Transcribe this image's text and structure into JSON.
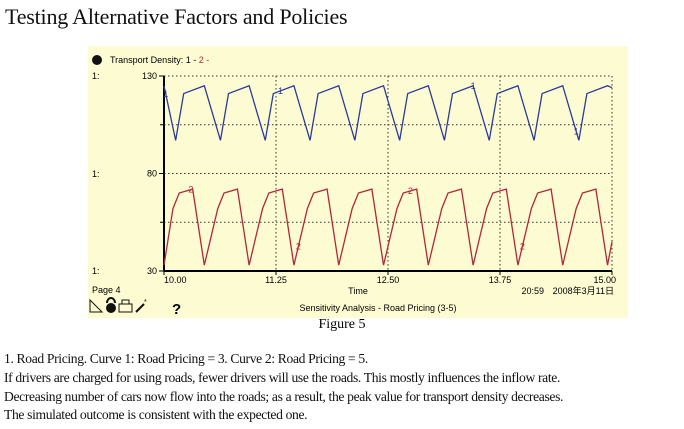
{
  "title": "Testing Alternative Factors and Policies",
  "panel": {
    "legend_prefix": "Transport Density: 1 - ",
    "legend_2": "2 -",
    "axis_marker": "1:",
    "page": "Page 4",
    "xlabel": "Time",
    "clock": "20:59",
    "date": "2008年3月11日",
    "run_label": "Sensitivity Analysis - Road Pricing (3-5)",
    "help": "?",
    "icons": [
      "pie-icon",
      "lock-icon",
      "printer-icon",
      "magic-wand-icon",
      "help-icon"
    ]
  },
  "chart_data": {
    "type": "line",
    "title": "Transport Density",
    "xlabel": "Time",
    "ylabel": "",
    "xlim": [
      10,
      15
    ],
    "ylim": [
      30,
      130
    ],
    "xticks": [
      "10.00",
      "11.25",
      "12.50",
      "13.75",
      "15.00"
    ],
    "yticks": [
      "30",
      "80",
      "130"
    ],
    "grid": true,
    "series": [
      {
        "name": "1",
        "color": "#2a3a9c",
        "t": [
          10,
          10.13,
          10.22,
          10.45,
          10.63,
          10.72,
          10.95,
          11.13,
          11.22,
          11.45,
          11.63,
          11.72,
          11.95,
          12.13,
          12.22,
          12.45,
          12.63,
          12.72,
          12.95,
          13.13,
          13.22,
          13.45,
          13.63,
          13.72,
          13.95,
          14.13,
          14.22,
          14.45,
          14.63,
          14.72,
          14.95,
          15
        ],
        "v": [
          125,
          97,
          121,
          125,
          97,
          121,
          125,
          97,
          121,
          125,
          97,
          121,
          125,
          97,
          121,
          125,
          97,
          121,
          125,
          97,
          121,
          125,
          97,
          121,
          125,
          97,
          121,
          125,
          97,
          121,
          125,
          124
        ],
        "labels_at": [
          10.02,
          11.3,
          13.45,
          14.6
        ]
      },
      {
        "name": "2",
        "color": "#b0283a",
        "t": [
          10,
          10.1,
          10.17,
          10.32,
          10.45,
          10.6,
          10.67,
          10.82,
          10.95,
          11.1,
          11.17,
          11.32,
          11.45,
          11.6,
          11.67,
          11.82,
          11.95,
          12.1,
          12.17,
          12.32,
          12.45,
          12.6,
          12.67,
          12.82,
          12.95,
          13.1,
          13.17,
          13.32,
          13.45,
          13.6,
          13.67,
          13.82,
          13.95,
          14.1,
          14.17,
          14.32,
          14.45,
          14.6,
          14.67,
          14.82,
          14.95,
          15
        ],
        "v": [
          33,
          62,
          70,
          72,
          33,
          62,
          70,
          72,
          33,
          62,
          70,
          72,
          33,
          62,
          70,
          72,
          33,
          62,
          70,
          72,
          33,
          62,
          70,
          72,
          33,
          62,
          70,
          72,
          33,
          62,
          70,
          72,
          33,
          62,
          70,
          72,
          33,
          62,
          70,
          72,
          33,
          45
        ],
        "labels_at": [
          10.3,
          11.5,
          12.75,
          14.0
        ]
      }
    ]
  },
  "caption": "Figure 5",
  "paragraphs": [
    "1.   Road Pricing. Curve 1: Road Pricing = 3. Curve 2: Road Pricing = 5.",
    "If drivers are charged for using roads, fewer drivers will use the roads. This mostly influences the inflow rate.",
    "Decreasing number of cars now flow into the roads; as a result, the peak value for transport density decreases.",
    "The simulated outcome is consistent with the expected one."
  ]
}
